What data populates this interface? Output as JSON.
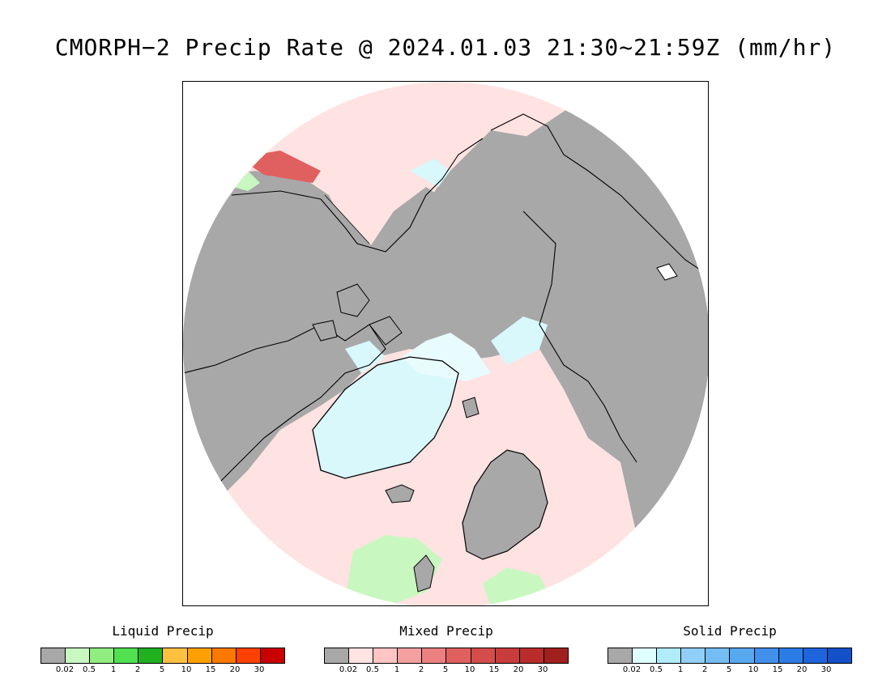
{
  "title": "CMORPH−2 Precip Rate @ 2024.01.03 21:30~21:59Z (mm/hr)",
  "legends": [
    {
      "id": "liquid",
      "title": "Liquid Precip",
      "colors": [
        "#a8a8a8",
        "#c8f8c0",
        "#90ee80",
        "#50e050",
        "#20b020",
        "#ffc040",
        "#ffa000",
        "#ff7800",
        "#ff4000",
        "#c80000"
      ],
      "ticks": [
        "0.02",
        "0.5",
        "1",
        "2",
        "5",
        "10",
        "15",
        "20",
        "30"
      ]
    },
    {
      "id": "mixed",
      "title": "Mixed Precip",
      "colors": [
        "#a8a8a8",
        "#ffe2e2",
        "#ffc4c4",
        "#f4a0a0",
        "#ec8080",
        "#e06060",
        "#d44c4c",
        "#c83c3c",
        "#b82c2c",
        "#a02020"
      ],
      "ticks": [
        "0.02",
        "0.5",
        "1",
        "2",
        "5",
        "10",
        "15",
        "20",
        "30"
      ]
    },
    {
      "id": "solid",
      "title": "Solid Precip",
      "colors": [
        "#a8a8a8",
        "#e0ffff",
        "#b0ecfa",
        "#90d0f8",
        "#74bcf4",
        "#58a8f0",
        "#4090ec",
        "#2c7ce6",
        "#1e64dc",
        "#1450c8"
      ],
      "ticks": [
        "0.02",
        "0.5",
        "1",
        "2",
        "5",
        "10",
        "15",
        "20",
        "30"
      ]
    }
  ],
  "map_colors": {
    "dry": "#a8a8a8",
    "mixed_light": "#ffe2e2",
    "mixed_moderate": "#e06060",
    "solid_light": "#d8f8fc",
    "liquid_light": "#c8f8c0",
    "coast": "#000000"
  }
}
